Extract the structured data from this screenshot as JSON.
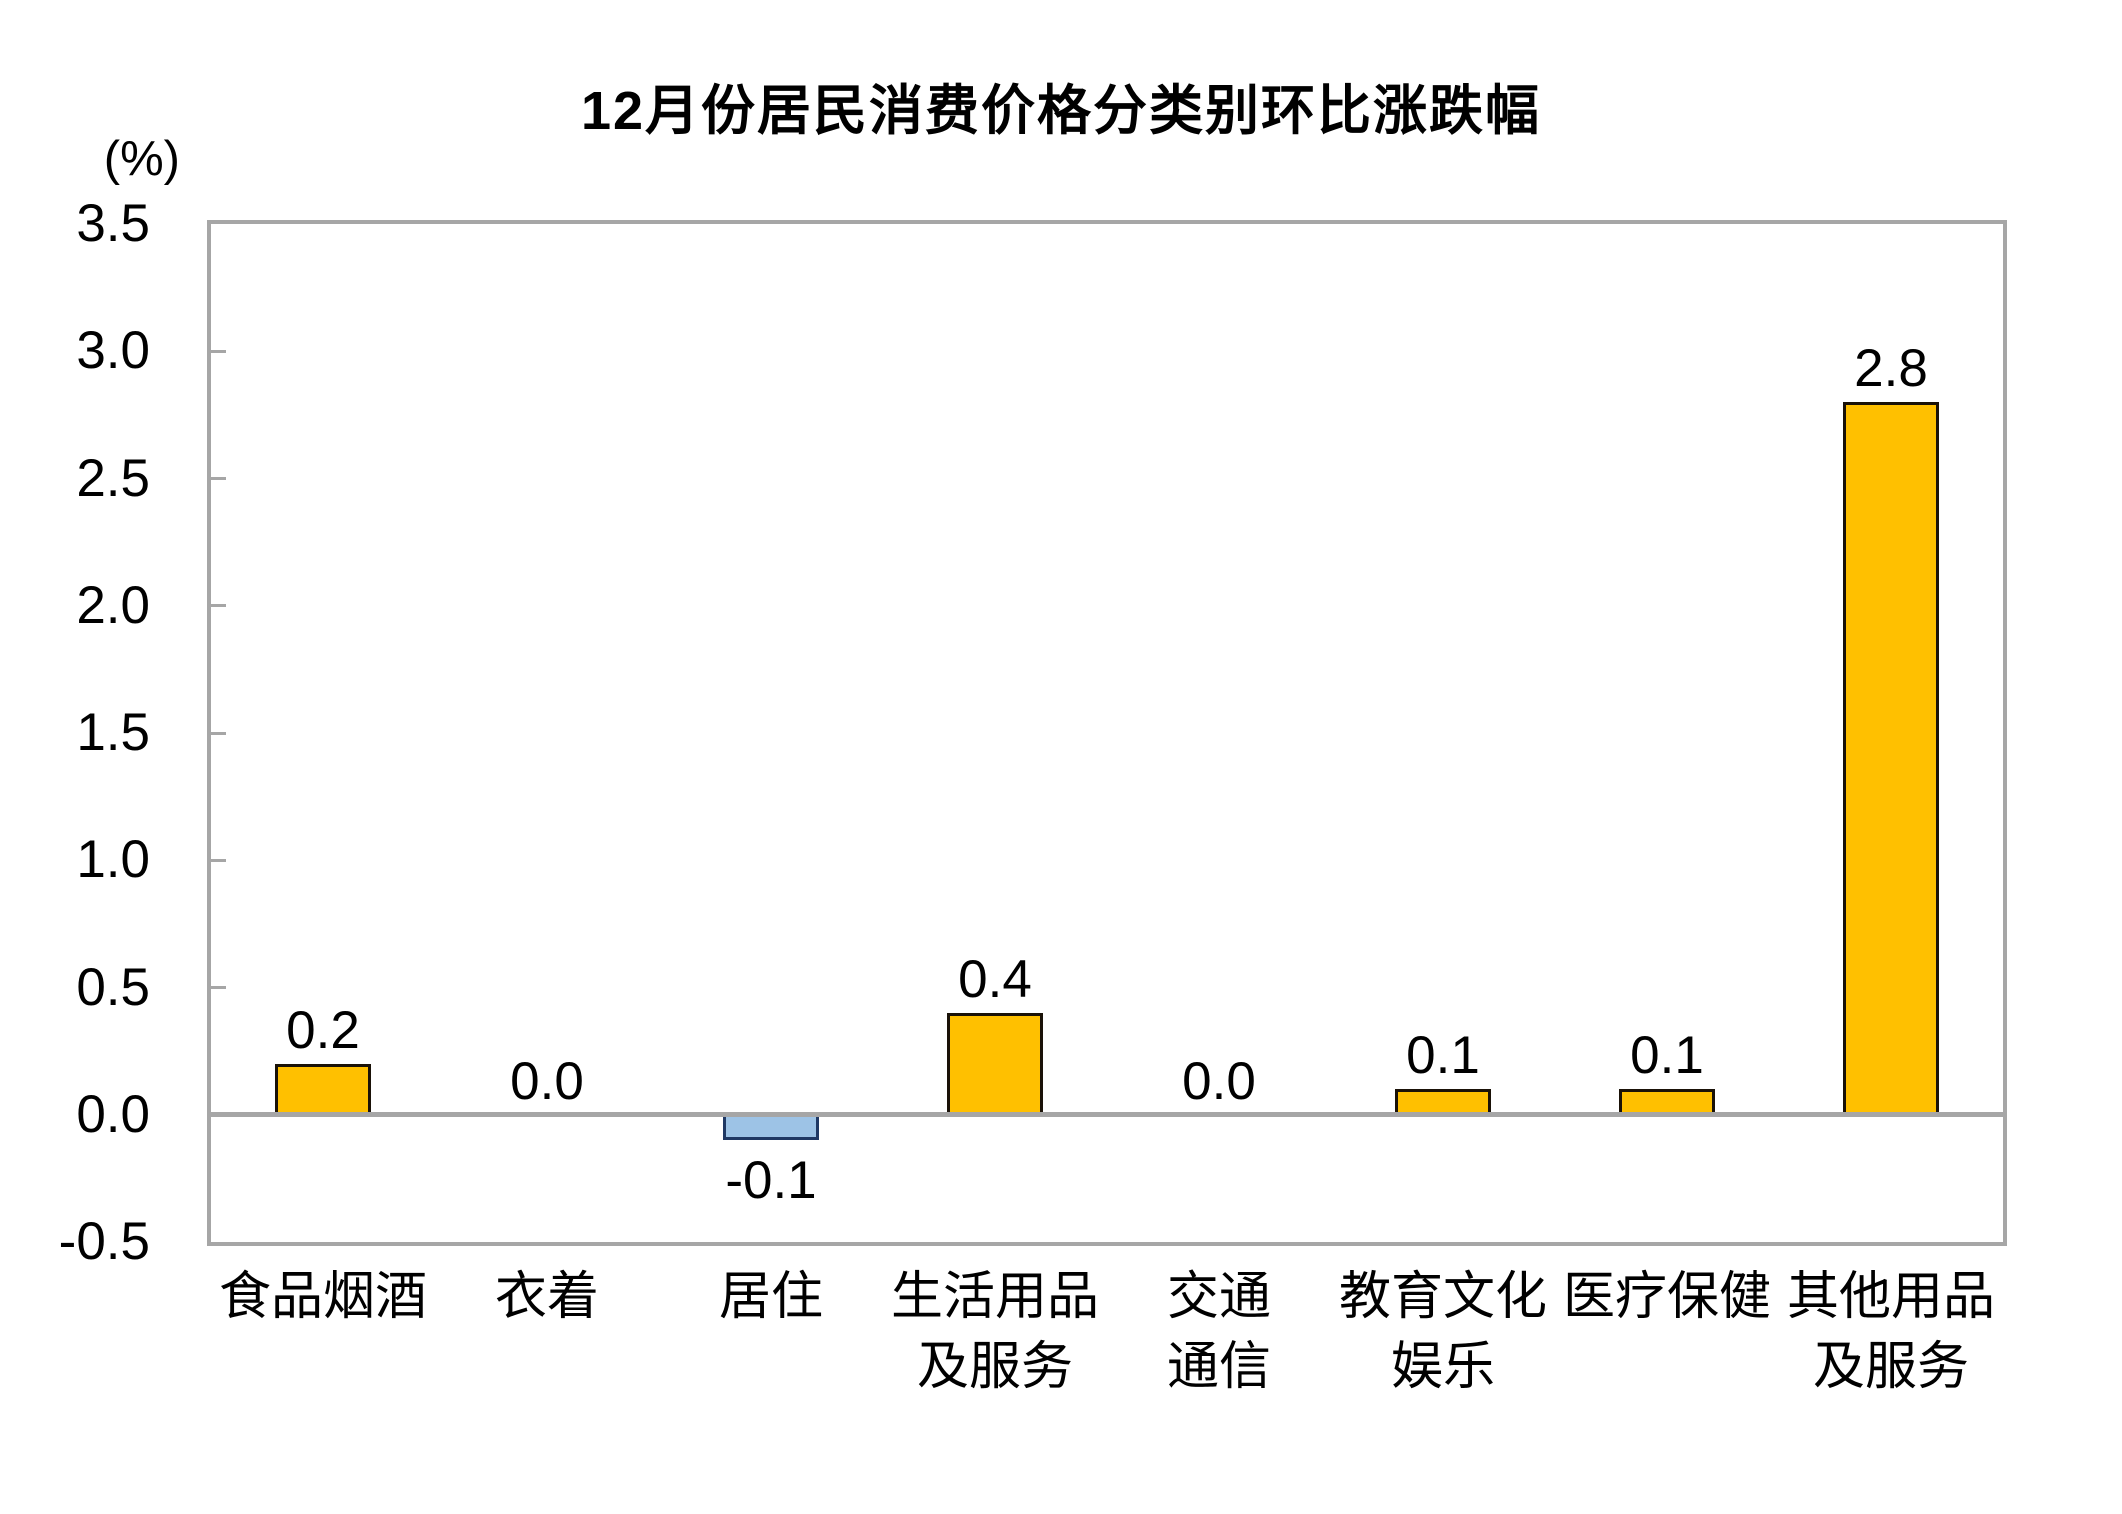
{
  "chart": {
    "title": "12月份居民消费价格分类别环比涨跌幅",
    "unit_label": "(%)"
  },
  "chart_data": {
    "type": "bar",
    "title": "12月份居民消费价格分类别环比涨跌幅",
    "unit_label": "(%)",
    "ylabel": "",
    "xlabel": "",
    "categories": [
      "食品烟酒",
      "衣着",
      "居住",
      "生活用品\n及服务",
      "交通\n通信",
      "教育文化\n娱乐",
      "医疗保健",
      "其他用品\n及服务"
    ],
    "values": [
      0.2,
      0.0,
      -0.1,
      0.4,
      0.0,
      0.1,
      0.1,
      2.8
    ],
    "value_labels": [
      "0.2",
      "0.0",
      "-0.1",
      "0.4",
      "0.0",
      "0.1",
      "0.1",
      "2.8"
    ],
    "ylim": [
      -0.5,
      3.5
    ],
    "ytick_step": 0.5,
    "ytick_labels": [
      "3.5",
      "3.0",
      "2.5",
      "2.0",
      "1.5",
      "1.0",
      "0.5",
      "0.0",
      "-0.5"
    ],
    "grid": false,
    "legend": "none",
    "colors": {
      "positive_fill": "#FFC000",
      "positive_border": "#1a1208",
      "negative_fill": "#9DC3E6",
      "negative_border": "#1F3864",
      "axis_line": "#A6A6A6",
      "text": "#000000",
      "background": "#FFFFFF"
    }
  }
}
